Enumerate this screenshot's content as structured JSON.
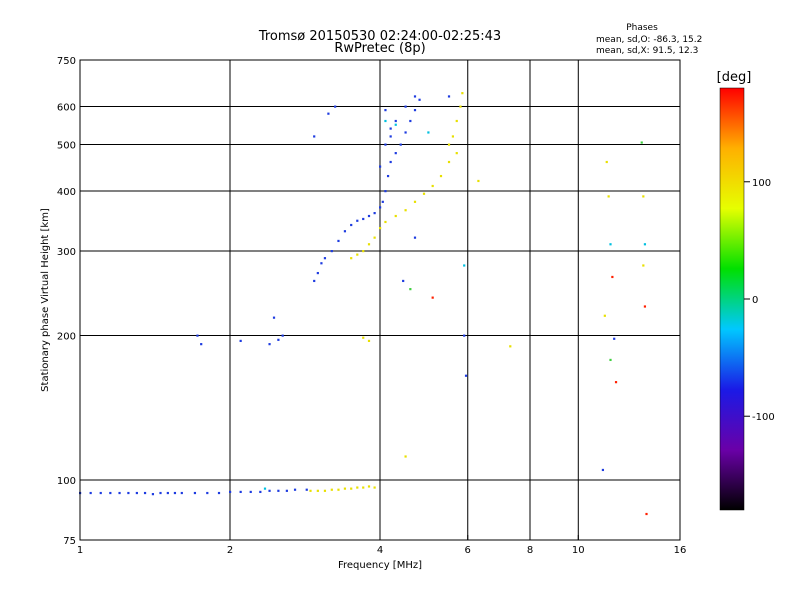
{
  "chart_data": {
    "type": "scatter",
    "title": "Tromsø 20150530 02:24:00-02:25:43",
    "subtitle": "RwPretec (8p)",
    "phase_box": {
      "header": "Phases",
      "line_o": "mean, sd,O: -86.3, 15.2",
      "line_x": "mean, sd,X:  91.5, 12.3"
    },
    "xlabel": "Frequency [MHz]",
    "ylabel": "Stationary phase Virtual Height [km]",
    "x_scale": "log",
    "y_scale": "log",
    "xlim": [
      1,
      16
    ],
    "ylim": [
      75,
      750
    ],
    "xticks": [
      1,
      2,
      4,
      6,
      8,
      10,
      16
    ],
    "x_gridlines": [
      2,
      4,
      6,
      8,
      10
    ],
    "yticks": [
      75,
      100,
      200,
      300,
      400,
      500,
      600,
      750
    ],
    "y_gridlines": [
      100,
      200,
      300,
      400,
      500,
      600
    ],
    "grid": true,
    "colorbar": {
      "label": "[deg]",
      "range": [
        -180,
        180
      ],
      "ticks": [
        -100,
        0,
        100
      ],
      "colors": [
        "#000000",
        "#6a00a8",
        "#1a1ae6",
        "#00c8ff",
        "#00e000",
        "#e6ff00",
        "#ffb000",
        "#ff0000"
      ]
    },
    "series": [
      {
        "mode": "O",
        "color_deg": -100,
        "color": "#1e3ce0",
        "points": [
          [
            1.0,
            94
          ],
          [
            1.05,
            94
          ],
          [
            1.1,
            94
          ],
          [
            1.15,
            94
          ],
          [
            1.2,
            94
          ],
          [
            1.25,
            94
          ],
          [
            1.3,
            94
          ],
          [
            1.35,
            94
          ],
          [
            1.4,
            93.5
          ],
          [
            1.45,
            94
          ],
          [
            1.5,
            94
          ],
          [
            1.55,
            94
          ],
          [
            1.6,
            94
          ],
          [
            1.7,
            94
          ],
          [
            1.8,
            94
          ],
          [
            1.9,
            94
          ],
          [
            2.0,
            94.5
          ],
          [
            2.1,
            94.5
          ],
          [
            2.2,
            94.5
          ],
          [
            2.3,
            94.5
          ],
          [
            2.4,
            95
          ],
          [
            2.5,
            95
          ],
          [
            2.6,
            95
          ],
          [
            2.7,
            95.5
          ],
          [
            2.85,
            95.5
          ],
          [
            1.72,
            200
          ],
          [
            1.75,
            192
          ],
          [
            2.1,
            195
          ],
          [
            2.4,
            192
          ],
          [
            2.45,
            218
          ],
          [
            2.5,
            196
          ],
          [
            2.55,
            200
          ],
          [
            2.95,
            260
          ],
          [
            3.0,
            270
          ],
          [
            3.05,
            283
          ],
          [
            3.1,
            290
          ],
          [
            3.2,
            300
          ],
          [
            3.3,
            315
          ],
          [
            3.4,
            330
          ],
          [
            3.5,
            340
          ],
          [
            3.6,
            347
          ],
          [
            3.7,
            350
          ],
          [
            3.8,
            355
          ],
          [
            3.9,
            360
          ],
          [
            4.0,
            370
          ],
          [
            4.05,
            380
          ],
          [
            4.1,
            400
          ],
          [
            4.15,
            430
          ],
          [
            4.2,
            460
          ],
          [
            4.3,
            480
          ],
          [
            4.4,
            500
          ],
          [
            4.5,
            530
          ],
          [
            4.6,
            560
          ],
          [
            4.7,
            590
          ],
          [
            4.8,
            620
          ],
          [
            4.0,
            450
          ],
          [
            4.1,
            500
          ],
          [
            4.2,
            540
          ],
          [
            4.3,
            560
          ],
          [
            4.5,
            600
          ],
          [
            4.7,
            630
          ],
          [
            2.95,
            520
          ],
          [
            3.15,
            580
          ],
          [
            3.25,
            600
          ],
          [
            4.1,
            590
          ],
          [
            4.2,
            520
          ],
          [
            4.45,
            260
          ],
          [
            4.7,
            320
          ],
          [
            5.5,
            630
          ],
          [
            5.9,
            200
          ],
          [
            5.95,
            165
          ],
          [
            11.2,
            105
          ],
          [
            11.8,
            197
          ]
        ]
      },
      {
        "mode": "X",
        "color_deg": 100,
        "color": "#e8e000",
        "points": [
          [
            2.9,
            95
          ],
          [
            3.0,
            95
          ],
          [
            3.1,
            95
          ],
          [
            3.2,
            95.5
          ],
          [
            3.3,
            95.5
          ],
          [
            3.4,
            96
          ],
          [
            3.5,
            96
          ],
          [
            3.6,
            96.5
          ],
          [
            3.7,
            96.5
          ],
          [
            3.8,
            97
          ],
          [
            3.9,
            96.5
          ],
          [
            3.5,
            290
          ],
          [
            3.6,
            295
          ],
          [
            3.7,
            300
          ],
          [
            3.8,
            310
          ],
          [
            3.9,
            320
          ],
          [
            4.0,
            335
          ],
          [
            4.1,
            345
          ],
          [
            4.3,
            355
          ],
          [
            4.5,
            365
          ],
          [
            4.7,
            380
          ],
          [
            4.9,
            395
          ],
          [
            5.1,
            410
          ],
          [
            5.3,
            430
          ],
          [
            5.5,
            460
          ],
          [
            5.7,
            480
          ],
          [
            3.7,
            198
          ],
          [
            3.8,
            195
          ],
          [
            5.6,
            520
          ],
          [
            5.7,
            560
          ],
          [
            5.8,
            600
          ],
          [
            5.85,
            640
          ],
          [
            5.5,
            500
          ],
          [
            4.5,
            112
          ],
          [
            6.3,
            420
          ],
          [
            7.3,
            190
          ],
          [
            11.3,
            220
          ],
          [
            11.5,
            390
          ],
          [
            11.4,
            460
          ],
          [
            13.5,
            280
          ],
          [
            13.5,
            390
          ]
        ]
      },
      {
        "mode": "mixed",
        "color_deg": -20,
        "color": "#00c0e0",
        "points": [
          [
            2.35,
            96
          ],
          [
            4.1,
            560
          ],
          [
            4.3,
            550
          ],
          [
            5.0,
            530
          ],
          [
            5.9,
            280
          ],
          [
            11.6,
            310
          ],
          [
            13.6,
            310
          ]
        ]
      },
      {
        "mode": "mixed",
        "color_deg": 150,
        "color": "#ff2000",
        "points": [
          [
            5.1,
            240
          ],
          [
            11.7,
            265
          ],
          [
            11.9,
            160
          ],
          [
            13.6,
            230
          ],
          [
            13.7,
            85
          ]
        ]
      },
      {
        "mode": "mixed",
        "color_deg": 40,
        "color": "#40d040",
        "points": [
          [
            13.4,
            505
          ],
          [
            4.6,
            250
          ],
          [
            11.6,
            178
          ]
        ]
      }
    ]
  }
}
